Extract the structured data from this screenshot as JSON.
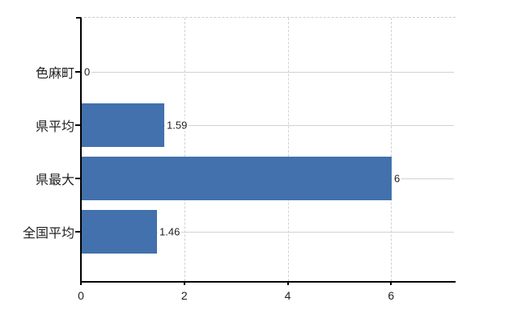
{
  "chart_data": {
    "type": "bar",
    "orientation": "horizontal",
    "categories": [
      "色麻町",
      "県平均",
      "県最大",
      "全国平均"
    ],
    "values": [
      0,
      1.59,
      6,
      1.46
    ],
    "value_labels": [
      "0",
      "1.59",
      "6",
      "1.46"
    ],
    "xlim": [
      0,
      7.2
    ],
    "xticks": [
      0,
      2,
      4,
      6
    ],
    "xtick_labels": [
      "0",
      "2",
      "4",
      "6"
    ],
    "grid": {
      "horizontal_lines": "solid, one per category row",
      "vertical_lines": "dashed, at x ticks 2/4/6",
      "plot_top_border": "dashed"
    },
    "legend": "none",
    "colors": {
      "bar": "#4271ad",
      "h_gridline": "#ccd5cc",
      "v_gridline": "#d4cfd4",
      "top_border": "#d0ccd0",
      "axis": "#000000",
      "label_text": "#222222",
      "background": "#ffffff"
    }
  }
}
